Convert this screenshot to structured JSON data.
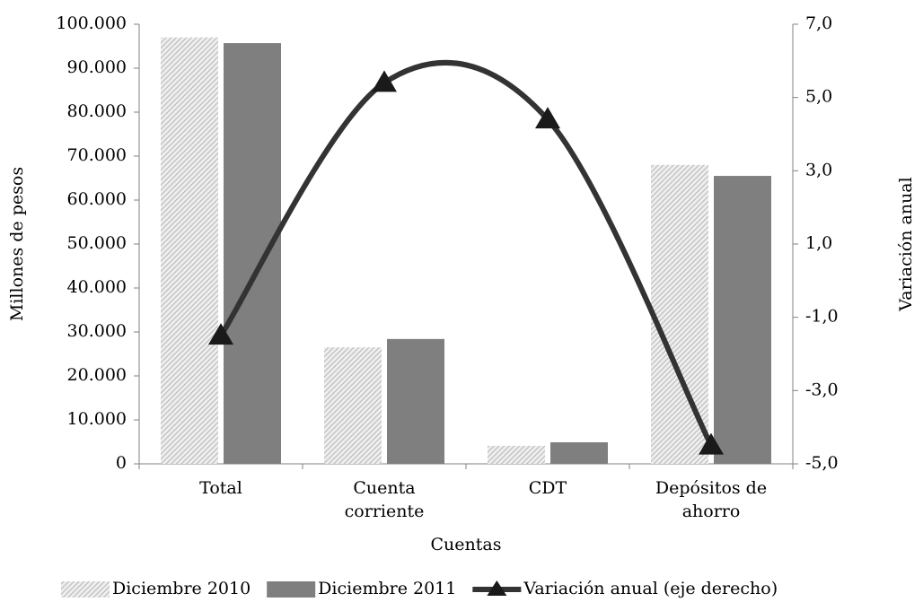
{
  "chart_data": {
    "type": "bar-line",
    "x_label": "Cuentas",
    "y_label": "Millones de pesos",
    "y2_label": "Variación anual",
    "categories": [
      "Total",
      "Cuenta corriente",
      "CDT",
      "Depósitos de ahorro"
    ],
    "series": [
      {
        "name": "Diciembre 2010",
        "type": "bar",
        "color": "#c8c8c8",
        "values": [
          97000,
          26500,
          4100,
          68000
        ]
      },
      {
        "name": "Diciembre 2011",
        "type": "bar",
        "color": "#7f7f7f",
        "values": [
          95700,
          28400,
          4900,
          65500
        ]
      },
      {
        "name": "Variación anual (eje derecho)",
        "type": "line",
        "axis": "y2",
        "color": "#333333",
        "values": [
          -1.5,
          5.4,
          4.4,
          -4.5
        ]
      }
    ],
    "ylim": [
      0,
      100000
    ],
    "yticks": [
      {
        "value": 0,
        "label": "0"
      },
      {
        "value": 10000,
        "label": "10.000"
      },
      {
        "value": 20000,
        "label": "20.000"
      },
      {
        "value": 30000,
        "label": "30.000"
      },
      {
        "value": 40000,
        "label": "40.000"
      },
      {
        "value": 50000,
        "label": "50.000"
      },
      {
        "value": 60000,
        "label": "60.000"
      },
      {
        "value": 70000,
        "label": "70.000"
      },
      {
        "value": 80000,
        "label": "80.000"
      },
      {
        "value": 90000,
        "label": "90.000"
      },
      {
        "value": 100000,
        "label": "100.000"
      }
    ],
    "y2lim": [
      -5,
      7
    ],
    "y2ticks": [
      {
        "value": -5,
        "label": "-5,0"
      },
      {
        "value": -3,
        "label": "-3,0"
      },
      {
        "value": -1,
        "label": "-1,0"
      },
      {
        "value": 1,
        "label": "1,0"
      },
      {
        "value": 3,
        "label": "3,0"
      },
      {
        "value": 5,
        "label": "5,0"
      },
      {
        "value": 7,
        "label": "7,0"
      }
    ]
  }
}
